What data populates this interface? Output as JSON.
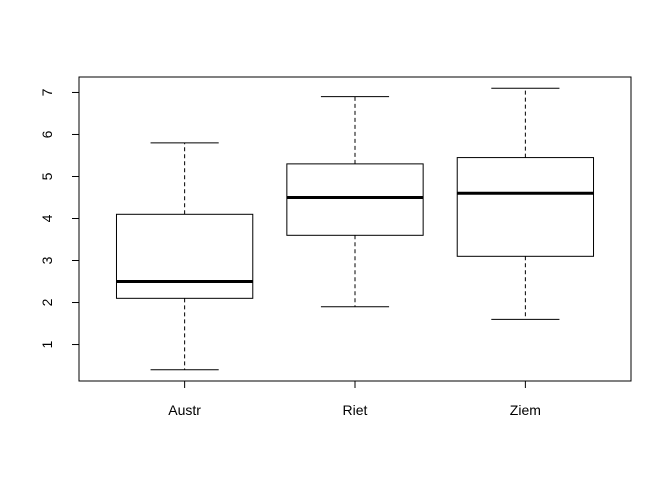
{
  "chart_data": {
    "type": "boxplot",
    "categories": [
      "Austr",
      "Riet",
      "Ziem"
    ],
    "boxes": [
      {
        "min": 0.4,
        "q1": 2.1,
        "median": 2.5,
        "q3": 4.1,
        "max": 5.8
      },
      {
        "min": 1.9,
        "q1": 3.6,
        "median": 4.5,
        "q3": 5.3,
        "max": 6.9
      },
      {
        "min": 1.6,
        "q1": 3.1,
        "median": 4.6,
        "q3": 5.45,
        "max": 7.1
      }
    ],
    "ylim": [
      0.132,
      7.368
    ],
    "yticks": [
      1,
      2,
      3,
      4,
      5,
      6,
      7
    ]
  }
}
